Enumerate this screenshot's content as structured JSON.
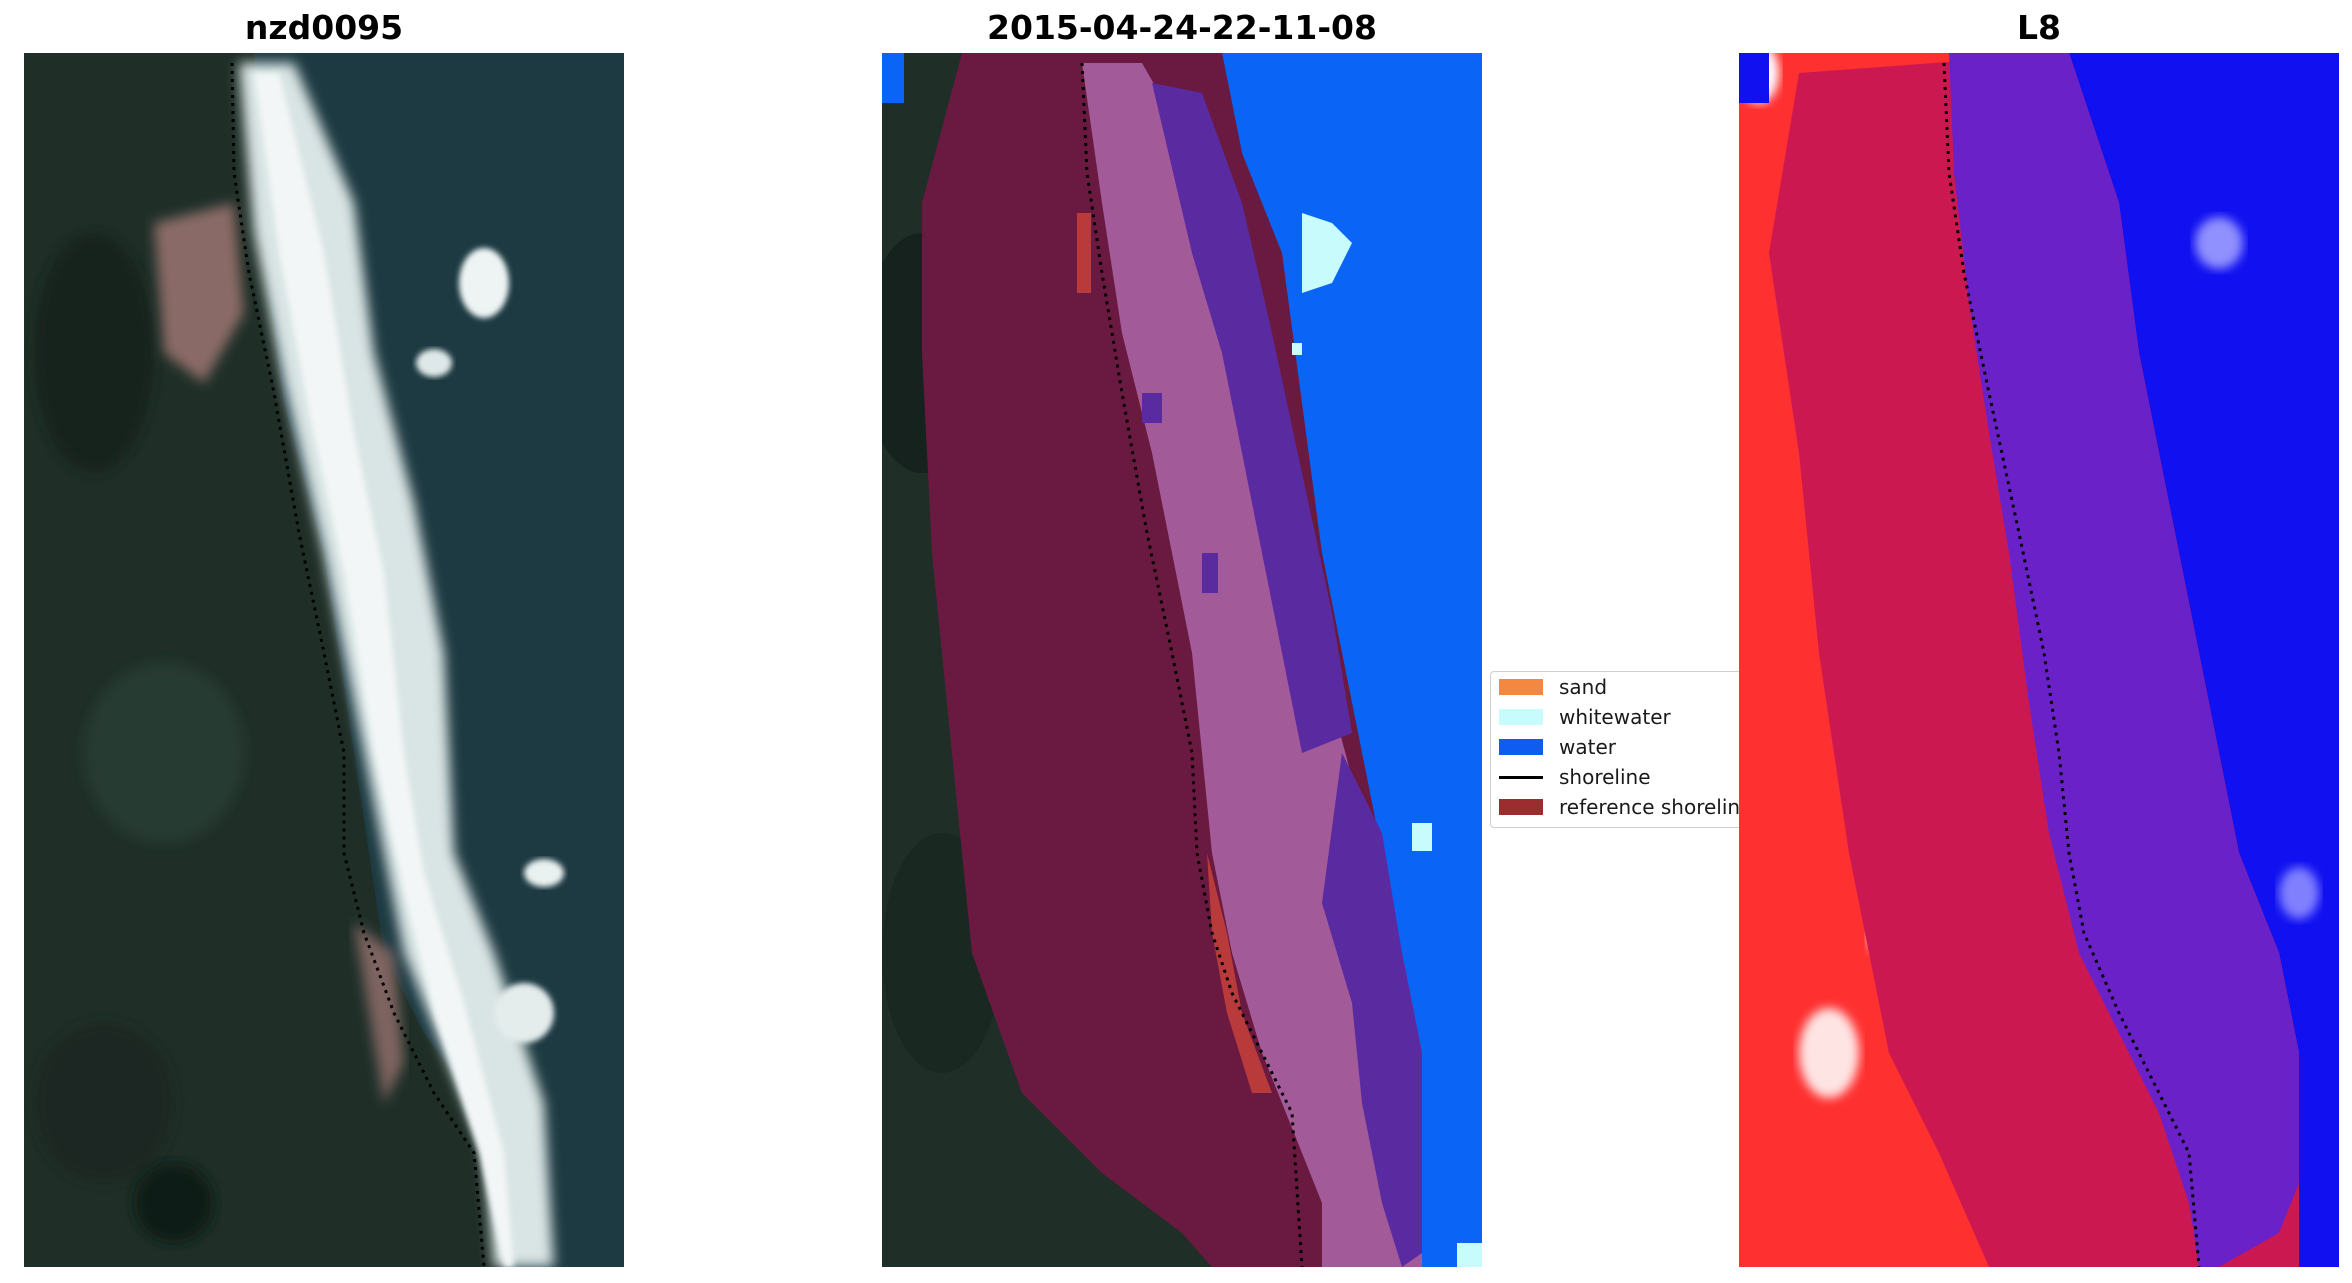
{
  "panels": [
    {
      "title": "nzd0095"
    },
    {
      "title": "2015-04-24-22-11-08"
    },
    {
      "title": "L8"
    }
  ],
  "legend": {
    "items": [
      {
        "label": "sand",
        "color": "#f5883f",
        "kind": "patch"
      },
      {
        "label": "whitewater",
        "color": "#c8fcfc",
        "kind": "patch"
      },
      {
        "label": "water",
        "color": "#0f5cf0",
        "kind": "patch"
      },
      {
        "label": "shoreline",
        "color": "#000000",
        "kind": "line"
      },
      {
        "label": "reference shoreline",
        "color": "#9b2d2f",
        "kind": "patch"
      }
    ]
  },
  "colors": {
    "land": "#1f2f28",
    "land_dark": "#16221d",
    "surf": "#e6ecec",
    "ocean": "#1d3a42",
    "buffer_land": "#6a1a40",
    "buffer_sand": "#a35a98",
    "buffer_sea": "#5a2aa0",
    "water_class": "#0a64f5",
    "l8_land": "#ff3030",
    "l8_buffer_land": "#cc1850",
    "l8_buffer_sea": "#6a22c8",
    "l8_water": "#1010f0"
  }
}
